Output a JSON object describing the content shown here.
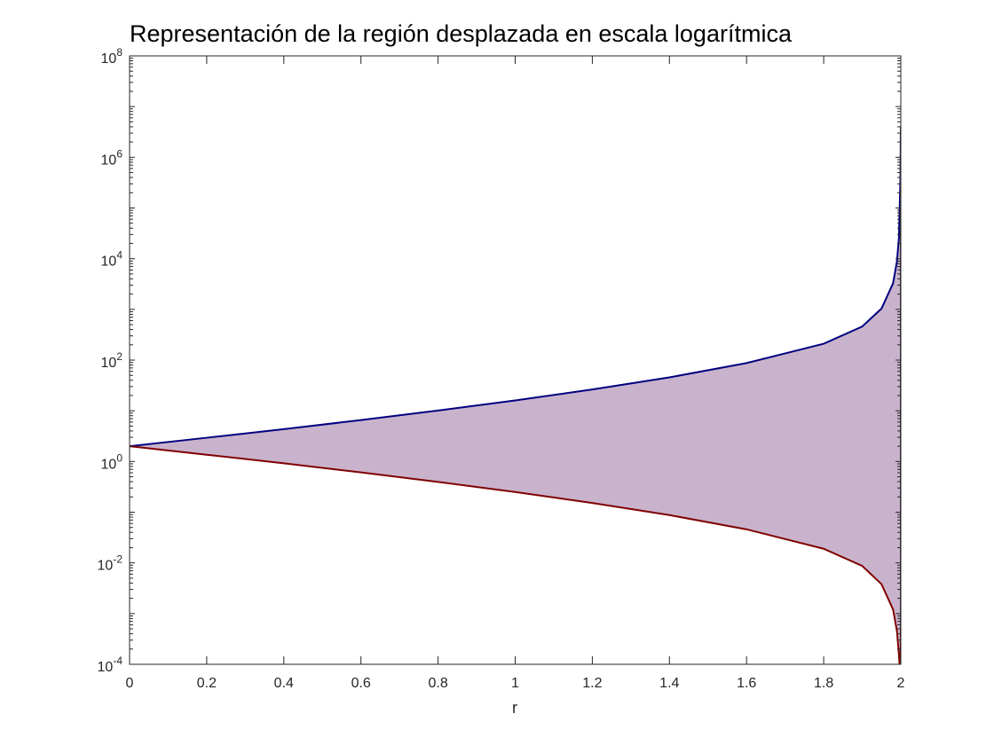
{
  "chart_data": {
    "type": "area",
    "title": "Representación de la región desplazada en escala logarítmica",
    "xlabel": "r",
    "ylabel": "",
    "xlim": [
      0,
      2
    ],
    "ylim": [
      0.0001,
      100000000
    ],
    "yscale": "log",
    "grid": false,
    "legend": "none",
    "x_ticks": [
      "0",
      "0.2",
      "0.4",
      "0.6",
      "0.8",
      "1",
      "1.2",
      "1.4",
      "1.6",
      "1.8",
      "2"
    ],
    "y_ticks": [
      {
        "base": "10",
        "exp": "-4"
      },
      {
        "base": "10",
        "exp": "-2"
      },
      {
        "base": "10",
        "exp": "0"
      },
      {
        "base": "10",
        "exp": "2"
      },
      {
        "base": "10",
        "exp": "4"
      },
      {
        "base": "10",
        "exp": "6"
      },
      {
        "base": "10",
        "exp": "8"
      }
    ],
    "x": [
      0,
      0.2,
      0.4,
      0.6,
      0.8,
      1.0,
      1.2,
      1.4,
      1.6,
      1.8,
      1.9,
      1.95,
      1.98,
      1.99,
      1.995,
      1.999,
      2.0
    ],
    "series": [
      {
        "role": "upper-boundary",
        "color": "#00007f",
        "values": [
          2.0,
          2.94,
          4.35,
          6.55,
          10.1,
          16.0,
          26.3,
          45.6,
          87.2,
          210,
          460,
          1040,
          3280,
          8840,
          25000,
          400000,
          4000000
        ]
      },
      {
        "role": "lower-boundary",
        "color": "#7f0000",
        "values": [
          2.0,
          1.36,
          0.92,
          0.61,
          0.395,
          0.25,
          0.152,
          0.0877,
          0.0459,
          0.019,
          0.0087,
          0.0038,
          0.0012,
          0.00045,
          0.00016,
          5e-05,
          0.0005
        ]
      }
    ],
    "fill_color": "#c9b3cc"
  }
}
